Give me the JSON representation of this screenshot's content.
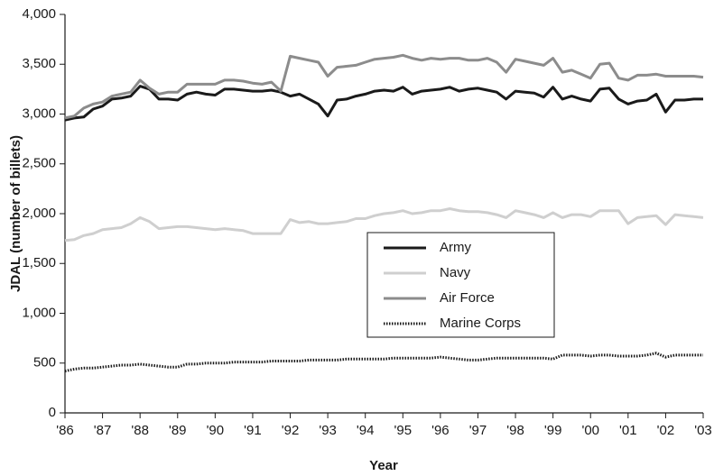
{
  "chart_data": {
    "type": "line",
    "x_label": "Year",
    "y_label": "JDAL (number of billets)",
    "x": [
      1986,
      1986.25,
      1986.5,
      1986.75,
      1987,
      1987.25,
      1987.5,
      1987.75,
      1988,
      1988.25,
      1988.5,
      1988.75,
      1989,
      1989.25,
      1989.5,
      1989.75,
      1990,
      1990.25,
      1990.5,
      1990.75,
      1991,
      1991.25,
      1991.5,
      1991.75,
      1992,
      1992.25,
      1992.5,
      1992.75,
      1993,
      1993.25,
      1993.5,
      1993.75,
      1994,
      1994.25,
      1994.5,
      1994.75,
      1995,
      1995.25,
      1995.5,
      1995.75,
      1996,
      1996.25,
      1996.5,
      1996.75,
      1997,
      1997.25,
      1997.5,
      1997.75,
      1998,
      1998.25,
      1998.5,
      1998.75,
      1999,
      1999.25,
      1999.5,
      1999.75,
      2000,
      2000.25,
      2000.5,
      2000.75,
      2001,
      2001.25,
      2001.5,
      2001.75,
      2002,
      2002.25,
      2002.5,
      2002.75,
      2003
    ],
    "series": [
      {
        "name": "Army",
        "color": "#1a1a1a",
        "dash": "solid",
        "values": [
          2940,
          2960,
          2970,
          3050,
          3080,
          3150,
          3160,
          3180,
          3280,
          3250,
          3150,
          3150,
          3140,
          3200,
          3220,
          3200,
          3190,
          3250,
          3250,
          3240,
          3230,
          3230,
          3240,
          3220,
          3180,
          3200,
          3150,
          3100,
          2980,
          3140,
          3150,
          3180,
          3200,
          3230,
          3240,
          3230,
          3270,
          3200,
          3230,
          3240,
          3250,
          3270,
          3230,
          3250,
          3260,
          3240,
          3220,
          3150,
          3230,
          3220,
          3210,
          3170,
          3270,
          3150,
          3180,
          3150,
          3130,
          3250,
          3260,
          3150,
          3100,
          3130,
          3140,
          3200,
          3020,
          3140,
          3140,
          3150,
          3150
        ]
      },
      {
        "name": "Navy",
        "color": "#cfcfcf",
        "dash": "solid",
        "values": [
          1730,
          1740,
          1780,
          1800,
          1840,
          1850,
          1860,
          1900,
          1960,
          1920,
          1850,
          1860,
          1870,
          1870,
          1860,
          1850,
          1840,
          1850,
          1840,
          1830,
          1800,
          1800,
          1800,
          1800,
          1940,
          1910,
          1920,
          1900,
          1900,
          1910,
          1920,
          1950,
          1950,
          1980,
          2000,
          2010,
          2030,
          2000,
          2010,
          2030,
          2030,
          2050,
          2030,
          2020,
          2020,
          2010,
          1990,
          1960,
          2030,
          2010,
          1990,
          1960,
          2010,
          1960,
          1990,
          1990,
          1970,
          2030,
          2030,
          2030,
          1900,
          1960,
          1970,
          1980,
          1890,
          1990,
          1980,
          1970,
          1960
        ]
      },
      {
        "name": "Air Force",
        "color": "#8c8c8c",
        "dash": "solid",
        "values": [
          2960,
          2980,
          3060,
          3100,
          3120,
          3180,
          3200,
          3220,
          3340,
          3260,
          3200,
          3220,
          3220,
          3300,
          3300,
          3300,
          3300,
          3340,
          3340,
          3330,
          3310,
          3300,
          3320,
          3230,
          3580,
          3560,
          3540,
          3520,
          3380,
          3470,
          3480,
          3490,
          3520,
          3550,
          3560,
          3570,
          3590,
          3560,
          3540,
          3560,
          3550,
          3560,
          3560,
          3540,
          3540,
          3560,
          3520,
          3420,
          3550,
          3530,
          3510,
          3490,
          3560,
          3420,
          3440,
          3400,
          3360,
          3500,
          3510,
          3360,
          3340,
          3390,
          3390,
          3400,
          3380,
          3380,
          3380,
          3380,
          3370
        ]
      },
      {
        "name": "Marine Corps",
        "color": "#1a1a1a",
        "dash": "dotted",
        "values": [
          420,
          440,
          450,
          450,
          460,
          470,
          480,
          480,
          490,
          480,
          470,
          460,
          460,
          490,
          490,
          500,
          500,
          500,
          510,
          510,
          510,
          510,
          520,
          520,
          520,
          520,
          530,
          530,
          530,
          530,
          540,
          540,
          540,
          540,
          540,
          550,
          550,
          550,
          550,
          550,
          560,
          550,
          540,
          530,
          530,
          540,
          550,
          550,
          550,
          550,
          550,
          550,
          540,
          580,
          580,
          580,
          570,
          580,
          580,
          570,
          570,
          570,
          580,
          600,
          560,
          580,
          580,
          580,
          580
        ]
      }
    ],
    "xlim": [
      1986,
      2003
    ],
    "xticks": [
      {
        "value": 1986,
        "label": "'86"
      },
      {
        "value": 1987,
        "label": "'87"
      },
      {
        "value": 1988,
        "label": "'88"
      },
      {
        "value": 1989,
        "label": "'89"
      },
      {
        "value": 1990,
        "label": "'90"
      },
      {
        "value": 1991,
        "label": "'91"
      },
      {
        "value": 1992,
        "label": "'92"
      },
      {
        "value": 1993,
        "label": "'93"
      },
      {
        "value": 1994,
        "label": "'94"
      },
      {
        "value": 1995,
        "label": "'95"
      },
      {
        "value": 1996,
        "label": "'96"
      },
      {
        "value": 1997,
        "label": "'97"
      },
      {
        "value": 1998,
        "label": "'98"
      },
      {
        "value": 1999,
        "label": "'99"
      },
      {
        "value": 2000,
        "label": "'00"
      },
      {
        "value": 2001,
        "label": "'01"
      },
      {
        "value": 2002,
        "label": "'02"
      },
      {
        "value": 2003,
        "label": "'03"
      }
    ],
    "ylim": [
      0,
      4000
    ],
    "yticks": [
      0,
      500,
      {
        "value": 1000,
        "label": "1,000"
      },
      {
        "value": 1500,
        "label": "1,500"
      },
      {
        "value": 2000,
        "label": "2,000"
      },
      {
        "value": 2500,
        "label": "2,500"
      },
      {
        "value": 3000,
        "label": "3,000"
      },
      {
        "value": 3500,
        "label": "3,500"
      },
      {
        "value": 4000,
        "label": "4,000"
      }
    ],
    "grid": false,
    "legend": "center-right"
  }
}
